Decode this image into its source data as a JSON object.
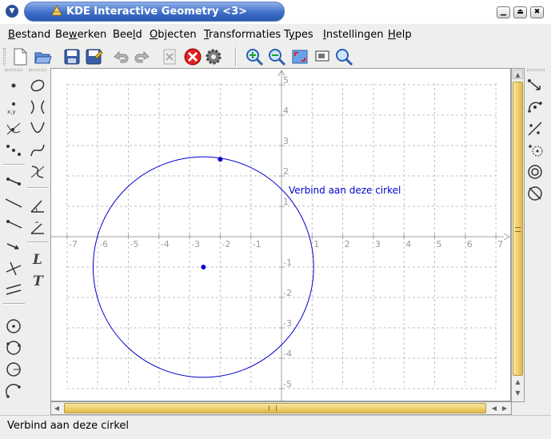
{
  "window": {
    "title": "KDE Interactive Geometry <3>",
    "menu_button_icon": "down-arrow-icon",
    "buttons": [
      "minimize-icon",
      "maximize-icon",
      "close-icon"
    ]
  },
  "menubar": {
    "items": [
      {
        "label": "Bestand",
        "accel": "B"
      },
      {
        "label": "Bewerken",
        "accel": "w"
      },
      {
        "label": "Beeld",
        "accel": "l"
      },
      {
        "label": "Objecten",
        "accel": "O"
      },
      {
        "label": "Transformaties",
        "accel": "T"
      },
      {
        "label": "Types",
        "accel": "y"
      },
      {
        "label": "Instellingen",
        "accel": "I"
      },
      {
        "label": "Help",
        "accel": "H"
      }
    ]
  },
  "toolbar": {
    "icons": [
      "new-document-icon",
      "open-folder-icon",
      "save-icon",
      "save-as-icon",
      "undo-icon",
      "redo-icon",
      "delete-icon",
      "cancel-construction-icon",
      "settings-gear-icon",
      "zoom-in-icon",
      "zoom-out-icon",
      "fullscreen-icon",
      "fit-page-icon",
      "zoom-fit-icon"
    ]
  },
  "left_toolbar_1": {
    "icons": [
      "point-icon",
      "point-by-coordinates-icon",
      "intersection-point-icon",
      "midpoint-icon",
      "segment-icon",
      "line-icon",
      "ray-icon",
      "vector-icon",
      "perpendicular-icon",
      "parallel-icon",
      "circle-by-center-point-icon",
      "circle-by-three-points-icon",
      "circle-by-center-radius-icon",
      "arc-icon"
    ]
  },
  "left_toolbar_2": {
    "icons": [
      "conic-icon",
      "hyperbola-icon",
      "parabola-icon",
      "cubic-icon",
      "locus-icon",
      "angle-icon",
      "measure-icon",
      "text-label-icon",
      "script-icon"
    ]
  },
  "right_toolbar": {
    "icons": [
      "translation-icon",
      "rotation-icon",
      "reflection-icon",
      "homothety-icon",
      "inversion-icon",
      "projective-icon"
    ]
  },
  "canvas": {
    "x_ticks": [
      "-7",
      "-6",
      "-5",
      "-4",
      "-3",
      "-2",
      "-1",
      "1",
      "2",
      "3",
      "4",
      "5",
      "6",
      "7"
    ],
    "y_ticks": [
      "5",
      "4",
      "3",
      "2",
      "1",
      "-1",
      "-2",
      "-3",
      "-4",
      "-5"
    ],
    "x_range": [
      -7.5,
      7.5
    ],
    "y_range": [
      -5.4,
      5.5
    ],
    "circle": {
      "center": [
        -2.55,
        -1.0
      ],
      "radius": 3.6,
      "color": "#0000cc"
    },
    "point_on_circle": [
      -2.0,
      2.55
    ],
    "label": "Verbind aan deze cirkel",
    "label_color": "#0000cc",
    "axis_color": "#a0a0a0",
    "grid_color": "#c0c0c0"
  },
  "statusbar": {
    "text": "Verbind aan deze cirkel"
  },
  "colors": {
    "titlebar": "#3f6fc8",
    "scroll_thumb": "#f0d070"
  }
}
